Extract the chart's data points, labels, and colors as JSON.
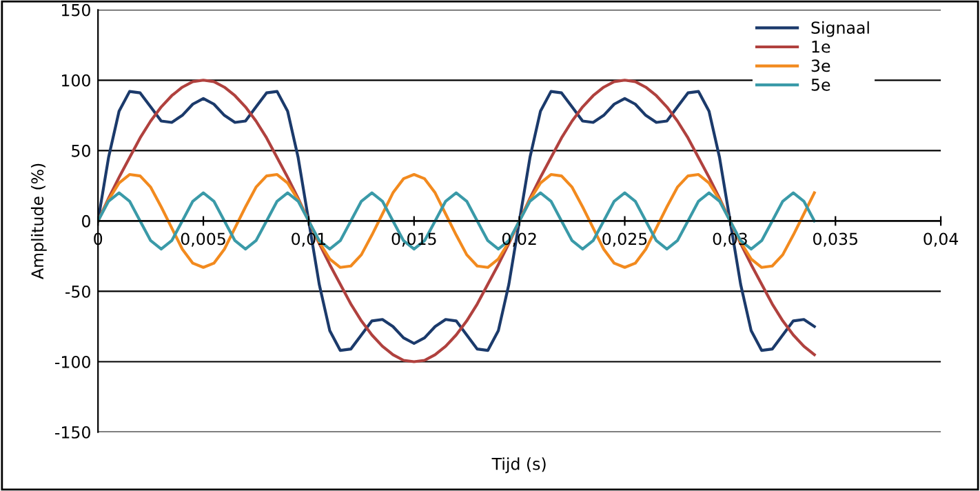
{
  "chart_data": {
    "type": "line",
    "xlabel": "Tijd (s)",
    "ylabel": "Amplitude (%)",
    "x": [
      0,
      0.0005,
      0.001,
      0.0015,
      0.002,
      0.0025,
      0.003,
      0.0035,
      0.004,
      0.0045,
      0.005,
      0.0055,
      0.006,
      0.0065,
      0.007,
      0.0075,
      0.008,
      0.0085,
      0.009,
      0.0095,
      0.01,
      0.0105,
      0.011,
      0.0115,
      0.012,
      0.0125,
      0.013,
      0.0135,
      0.014,
      0.0145,
      0.015,
      0.0155,
      0.016,
      0.0165,
      0.017,
      0.0175,
      0.018,
      0.0185,
      0.019,
      0.0195,
      0.02,
      0.0205,
      0.021,
      0.0215,
      0.022,
      0.0225,
      0.023,
      0.0235,
      0.024,
      0.0245,
      0.025,
      0.0255,
      0.026,
      0.0265,
      0.027,
      0.0275,
      0.028,
      0.0285,
      0.029,
      0.0295,
      0.03,
      0.0305,
      0.031,
      0.0315,
      0.032,
      0.0325,
      0.033,
      0.0335,
      0.034
    ],
    "series": [
      {
        "name": "Signaal",
        "color": "#1b3a6b",
        "values": [
          0,
          45,
          78,
          92,
          91,
          81,
          71,
          70,
          75,
          83,
          87,
          83,
          75,
          70,
          71,
          81,
          91,
          92,
          78,
          45,
          0,
          -45,
          -78,
          -92,
          -91,
          -81,
          -71,
          -70,
          -75,
          -83,
          -87,
          -83,
          -75,
          -70,
          -71,
          -81,
          -91,
          -92,
          -78,
          -45,
          0,
          45,
          78,
          92,
          91,
          81,
          71,
          70,
          75,
          83,
          87,
          83,
          75,
          70,
          71,
          81,
          91,
          92,
          78,
          45,
          0,
          -45,
          -78,
          -92,
          -91,
          -81,
          -71,
          -70,
          -75
        ]
      },
      {
        "name": "1e",
        "color": "#b0413e",
        "values": [
          0,
          16,
          31,
          45,
          59,
          71,
          81,
          89,
          95,
          99,
          100,
          99,
          95,
          89,
          81,
          71,
          59,
          45,
          31,
          16,
          0,
          -16,
          -31,
          -45,
          -59,
          -71,
          -81,
          -89,
          -95,
          -99,
          -100,
          -99,
          -95,
          -89,
          -81,
          -71,
          -59,
          -45,
          -31,
          -16,
          0,
          16,
          31,
          45,
          59,
          71,
          81,
          89,
          95,
          99,
          100,
          99,
          95,
          89,
          81,
          71,
          59,
          45,
          31,
          16,
          0,
          -16,
          -31,
          -45,
          -59,
          -71,
          -81,
          -89,
          -95
        ]
      },
      {
        "name": "3e",
        "color": "#f28a1e",
        "values": [
          0,
          15,
          27,
          33,
          32,
          24,
          10,
          -5,
          -20,
          -30,
          -33,
          -30,
          -20,
          -5,
          10,
          24,
          32,
          33,
          27,
          15,
          0,
          -15,
          -27,
          -33,
          -32,
          -24,
          -10,
          5,
          20,
          30,
          33,
          30,
          20,
          5,
          -10,
          -24,
          -32,
          -33,
          -27,
          -15,
          0,
          15,
          27,
          33,
          32,
          24,
          10,
          -5,
          -20,
          -30,
          -33,
          -30,
          -20,
          -5,
          10,
          24,
          32,
          33,
          27,
          15,
          0,
          -15,
          -27,
          -33,
          -32,
          -24,
          -10,
          5,
          20
        ]
      },
      {
        "name": "5e",
        "color": "#3a9aa8",
        "values": [
          0,
          14,
          20,
          14,
          0,
          -14,
          -20,
          -14,
          0,
          14,
          20,
          14,
          0,
          -14,
          -20,
          -14,
          0,
          14,
          20,
          14,
          0,
          -14,
          -20,
          -14,
          0,
          14,
          20,
          14,
          0,
          -14,
          -20,
          -14,
          0,
          14,
          20,
          14,
          0,
          -14,
          -20,
          -14,
          0,
          14,
          20,
          14,
          0,
          -14,
          -20,
          -14,
          0,
          14,
          20,
          14,
          0,
          -14,
          -20,
          -14,
          0,
          14,
          20,
          14,
          0,
          -14,
          -20,
          -14,
          0,
          14,
          20,
          14,
          0
        ]
      }
    ],
    "xlim": [
      0,
      0.04
    ],
    "xticks": [
      0,
      {
        "value": 0.005,
        "label": "0,005"
      },
      {
        "value": 0.01,
        "label": "0,01"
      },
      {
        "value": 0.015,
        "label": "0,015"
      },
      {
        "value": 0.02,
        "label": "0,02"
      },
      {
        "value": 0.025,
        "label": "0,025"
      },
      {
        "value": 0.03,
        "label": "0,03"
      },
      {
        "value": 0.035,
        "label": "0,035"
      },
      {
        "value": 0.04,
        "label": "0,04"
      }
    ],
    "ylim": [
      -150,
      150
    ],
    "yticks": [
      -150,
      -100,
      -50,
      0,
      50,
      100,
      150
    ],
    "grid": "y",
    "legend": "top right",
    "marker": "none",
    "line_style": "solid"
  }
}
